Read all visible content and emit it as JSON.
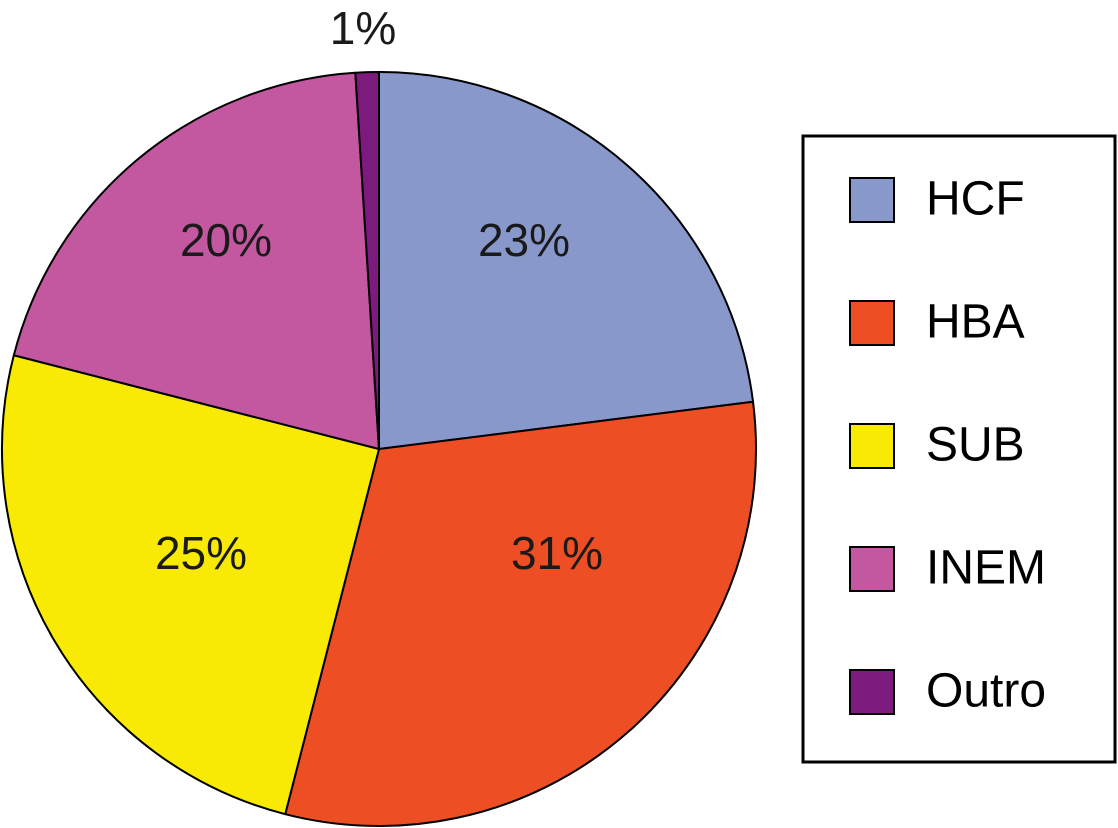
{
  "chart_data": {
    "type": "pie",
    "title": "",
    "legend_position": "right",
    "slices": [
      {
        "label": "HCF",
        "value": 23,
        "value_label": "23%",
        "color": "#8998CB"
      },
      {
        "label": "HBA",
        "value": 31,
        "value_label": "31%",
        "color": "#EE4E24"
      },
      {
        "label": "SUB",
        "value": 25,
        "value_label": "25%",
        "color": "#F8EA05"
      },
      {
        "label": "INEM",
        "value": 20,
        "value_label": "20%",
        "color": "#C358A0"
      },
      {
        "label": "Outro",
        "value": 1,
        "value_label": "1%",
        "color": "#7D1A7E"
      }
    ]
  }
}
